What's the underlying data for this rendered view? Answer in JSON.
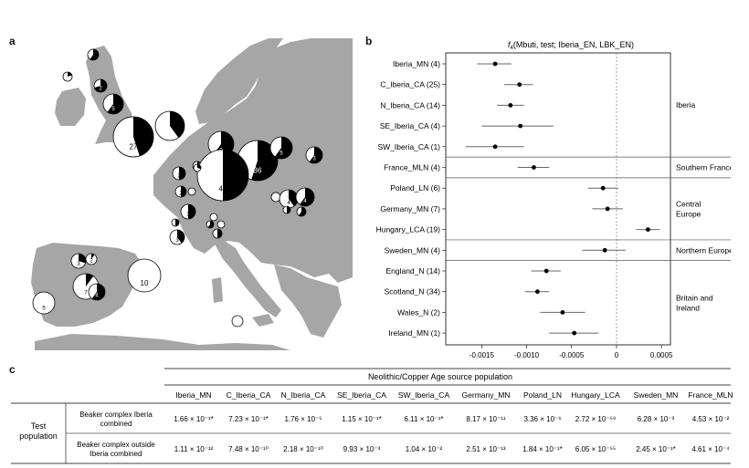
{
  "panels": {
    "a": "a",
    "b": "b",
    "c": "c"
  },
  "map": {
    "pies": [
      {
        "label": "",
        "black": 0.6
      },
      {
        "label": "",
        "black": 0.2
      },
      {
        "label": "2",
        "black": 0.7
      },
      {
        "label": "5",
        "black": 0.6
      },
      {
        "label": "27",
        "black": 0.45
      },
      {
        "label": "",
        "black": 0.4
      },
      {
        "label": "9",
        "black": 0.6
      },
      {
        "label": "9",
        "black": 0.15
      },
      {
        "label": "",
        "black": 0.1
      },
      {
        "label": "36",
        "black": 0.55
      },
      {
        "label": "5",
        "black": 0.6
      },
      {
        "label": "3",
        "black": 0.6
      },
      {
        "label": "45",
        "black": 0.5
      },
      {
        "label": "2",
        "black": 0.5
      },
      {
        "label": "",
        "black": 0.3
      },
      {
        "label": "2",
        "black": 0.5
      },
      {
        "label": "",
        "black": 0.0
      },
      {
        "label": "3",
        "black": 0.5
      },
      {
        "label": "",
        "black": 0.5
      },
      {
        "label": "",
        "black": 0.0
      },
      {
        "label": "",
        "black": 0.6
      },
      {
        "label": "",
        "black": 0.0
      },
      {
        "label": "3",
        "black": 0.4
      },
      {
        "label": "",
        "black": 0.0
      },
      {
        "label": "4",
        "black": 0.4
      },
      {
        "label": "4",
        "black": 0.6
      },
      {
        "label": "",
        "black": 0.5
      },
      {
        "label": "",
        "black": 0.6
      },
      {
        "label": "",
        "black": 0.5
      },
      {
        "label": "3",
        "black": 0.3
      },
      {
        "label": "2",
        "black": 0.1
      },
      {
        "label": "10",
        "black": 0.0
      },
      {
        "label": "7",
        "black": 0.1
      },
      {
        "label": "4",
        "black": 0.6
      },
      {
        "label": "5",
        "black": 0.0
      },
      {
        "label": "",
        "black": 0.0
      }
    ]
  },
  "forest": {
    "title_f": "f",
    "title_sub": "4",
    "title_rest": "(Mbuti, test; Iberia_EN, LBK_EN)",
    "rows": [
      {
        "label": "Iberia_MN (4)",
        "est": -0.00135,
        "lo": -0.00155,
        "hi": -0.00117
      },
      {
        "label": "C_Iberia_CA (25)",
        "est": -0.00108,
        "lo": -0.00125,
        "hi": -0.00093
      },
      {
        "label": "N_Iberia_CA (14)",
        "est": -0.00118,
        "lo": -0.00133,
        "hi": -0.00103
      },
      {
        "label": "SE_Iberia_CA (4)",
        "est": -0.00107,
        "lo": -0.0015,
        "hi": -0.0007
      },
      {
        "label": "SW_Iberia_CA (1)",
        "est": -0.00135,
        "lo": -0.00168,
        "hi": -0.00103
      },
      {
        "label": "France_MLN (4)",
        "est": -0.00092,
        "lo": -0.0011,
        "hi": -0.00075
      },
      {
        "label": "Poland_LN (6)",
        "est": -0.00015,
        "lo": -0.00032,
        "hi": 2e-05
      },
      {
        "label": "Germany_MN (7)",
        "est": -0.0001,
        "lo": -0.00027,
        "hi": 7e-05
      },
      {
        "label": "Hungary_LCA (19)",
        "est": 0.00035,
        "lo": 0.00022,
        "hi": 0.00048
      },
      {
        "label": "Sweden_MN (4)",
        "est": -0.00013,
        "lo": -0.00038,
        "hi": 0.0001
      },
      {
        "label": "England_N (14)",
        "est": -0.00078,
        "lo": -0.00095,
        "hi": -0.00062
      },
      {
        "label": "Scotland_N (34)",
        "est": -0.00088,
        "lo": -0.00102,
        "hi": -0.00075
      },
      {
        "label": "Wales_N (2)",
        "est": -0.0006,
        "lo": -0.00085,
        "hi": -0.00035
      },
      {
        "label": "Ireland_MN (1)",
        "est": -0.00047,
        "lo": -0.00075,
        "hi": -0.0002
      }
    ],
    "groups": [
      {
        "lines": [
          "Iberia"
        ],
        "from": 0,
        "to": 4
      },
      {
        "lines": [
          "Southern France"
        ],
        "from": 5,
        "to": 5
      },
      {
        "lines": [
          "Central",
          "Europe"
        ],
        "from": 6,
        "to": 8
      },
      {
        "lines": [
          "Northern Europe"
        ],
        "from": 9,
        "to": 9
      },
      {
        "lines": [
          "Britain and",
          "Ireland"
        ],
        "from": 10,
        "to": 13
      }
    ],
    "xlim": [
      -0.0019,
      0.0006
    ],
    "ticks": [
      "-0.0015",
      "-0.0010",
      "-0.0005",
      "0",
      "0.0005"
    ]
  },
  "table": {
    "header_title": "Neolithic/Copper Age source population",
    "columns": [
      "Iberia_MN",
      "C_Iberia_CA",
      "N_Iberia_CA",
      "SE_Iberia_CA",
      "SW_Iberia_CA",
      "Germany_MN",
      "Poland_LN",
      "Hungary_LCA",
      "Sweden_MN",
      "France_MLN"
    ],
    "row_group": [
      "Test",
      "population"
    ],
    "rows": [
      {
        "label": [
          "Beaker complex Iberia",
          "combined"
        ],
        "values": [
          "1.66 × 10⁻¹*",
          "7.23 × 10⁻¹*",
          "1.76 × 10⁻⁵",
          "1.15 × 10⁻¹*",
          "6.11 × 10⁻¹*",
          "8.17 × 10⁻¹¹",
          "3.36 × 10⁻⁶",
          "2.72 × 10⁻⁵⁹",
          "6.28 × 10⁻³",
          "4.53 × 10⁻²"
        ]
      },
      {
        "label": [
          "Beaker complex outside",
          "Iberia combined"
        ],
        "values": [
          "1.11 × 10⁻¹²",
          "7.48 × 10⁻¹⁰",
          "2.18 × 10⁻¹⁰",
          "9.93 × 10⁻³",
          "1.04 × 10⁻²",
          "2.51 × 10⁻¹³",
          "1.84 × 10⁻¹*",
          "6.05 × 10⁻⁵⁵",
          "2.45 × 10⁻¹*",
          "4.61 × 10⁻⁴"
        ]
      }
    ]
  }
}
